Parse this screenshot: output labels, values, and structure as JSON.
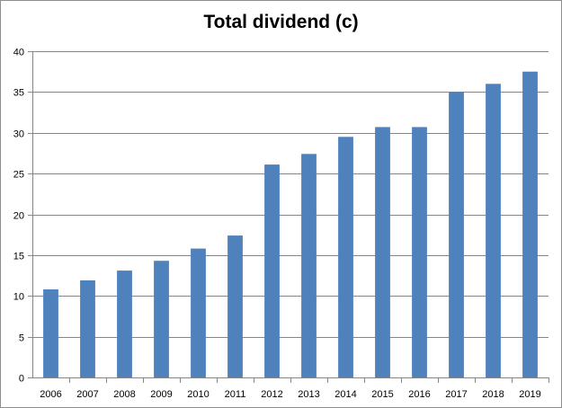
{
  "chart_data": {
    "type": "bar",
    "title": "Total dividend (c)",
    "xlabel": "",
    "ylabel": "",
    "categories": [
      "2006",
      "2007",
      "2008",
      "2009",
      "2010",
      "2011",
      "2012",
      "2013",
      "2014",
      "2015",
      "2016",
      "2017",
      "2018",
      "2019"
    ],
    "series": [
      {
        "values": [
          10.8,
          11.9,
          13.1,
          14.3,
          15.8,
          17.4,
          26.1,
          27.4,
          29.5,
          30.7,
          30.7,
          35.0,
          36.0,
          37.5
        ]
      }
    ],
    "ylim": [
      0,
      40
    ],
    "yticks": [
      0,
      5,
      10,
      15,
      20,
      25,
      30,
      35,
      40
    ],
    "grid": true,
    "legend": "none",
    "bar_color": "#4f81bd",
    "grid_color": "#868686"
  }
}
